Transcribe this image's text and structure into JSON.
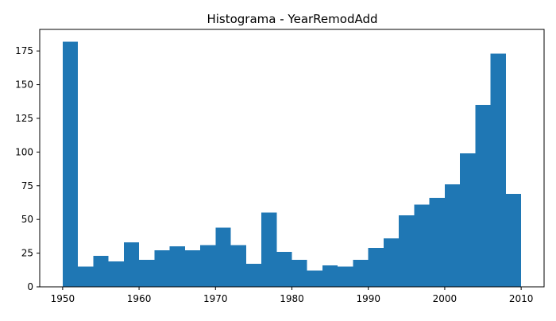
{
  "chart_data": {
    "type": "bar",
    "title": "Histograma - YearRemodAdd",
    "xlabel": "",
    "ylabel": "",
    "color": "#1f77b4",
    "bins": {
      "start": 1950,
      "end": 2010,
      "count": 30
    },
    "values": [
      182,
      15,
      23,
      19,
      33,
      20,
      27,
      30,
      27,
      31,
      44,
      31,
      17,
      55,
      26,
      20,
      12,
      16,
      15,
      20,
      29,
      36,
      53,
      61,
      66,
      76,
      99,
      135,
      173,
      69
    ],
    "xlim": [
      1947,
      2013
    ],
    "ylim": [
      0,
      191
    ],
    "xticks": [
      1950,
      1960,
      1970,
      1980,
      1990,
      2000,
      2010
    ],
    "yticks": [
      0,
      25,
      50,
      75,
      100,
      125,
      150,
      175
    ],
    "grid": false,
    "legend": false
  }
}
